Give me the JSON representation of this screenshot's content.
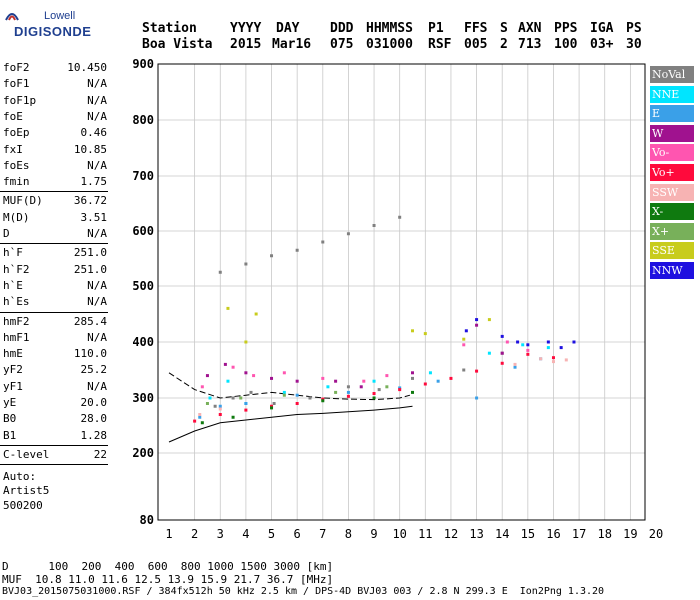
{
  "logo": {
    "top": "Lowell",
    "main": "DIGISONDE"
  },
  "header": {
    "labels": [
      "Station",
      "YYYY",
      "DAY",
      "DDD",
      "HHMMSS",
      "P1",
      "FFS",
      "S",
      "AXN",
      "PPS",
      "IGA",
      "PS"
    ],
    "values": [
      "Boa Vista",
      "2015",
      "Mar16",
      "075",
      "031000",
      "RSF",
      "005",
      "2",
      "713",
      "100",
      "03+",
      "30"
    ]
  },
  "params": {
    "group1": [
      {
        "name": "foF2",
        "value": "10.450"
      },
      {
        "name": "foF1",
        "value": "N/A"
      },
      {
        "name": "foF1p",
        "value": "N/A"
      },
      {
        "name": "foE",
        "value": "N/A"
      },
      {
        "name": "foEp",
        "value": "0.46"
      },
      {
        "name": "fxI",
        "value": "10.85"
      },
      {
        "name": "foEs",
        "value": "N/A"
      },
      {
        "name": "fmin",
        "value": "1.75"
      }
    ],
    "group2": [
      {
        "name": "MUF(D)",
        "value": "36.72"
      },
      {
        "name": "M(D)",
        "value": "3.51"
      },
      {
        "name": "D",
        "value": "N/A"
      }
    ],
    "group3": [
      {
        "name": "h`F",
        "value": "251.0"
      },
      {
        "name": "h`F2",
        "value": "251.0"
      },
      {
        "name": "h`E",
        "value": "N/A"
      },
      {
        "name": "h`Es",
        "value": "N/A"
      }
    ],
    "group4": [
      {
        "name": "hmF2",
        "value": "285.4"
      },
      {
        "name": "hmF1",
        "value": "N/A"
      },
      {
        "name": "hmE",
        "value": "110.0"
      },
      {
        "name": "yF2",
        "value": "25.2"
      },
      {
        "name": "yF1",
        "value": "N/A"
      },
      {
        "name": "yE",
        "value": "20.0"
      },
      {
        "name": "B0",
        "value": "28.0"
      },
      {
        "name": "B1",
        "value": "1.28"
      }
    ],
    "clevel": {
      "name": "C-level",
      "value": "22"
    },
    "auto": [
      "Auto:",
      "Artist5",
      "500200"
    ]
  },
  "legend": [
    {
      "label": "NoVal",
      "color": "#808080"
    },
    {
      "label": "NNE",
      "color": "#00e5ff"
    },
    {
      "label": "E",
      "color": "#3aa0e8"
    },
    {
      "label": "W",
      "color": "#a0128f"
    },
    {
      "label": "Vo-",
      "color": "#ff55b0"
    },
    {
      "label": "Vo+",
      "color": "#ff0a3c"
    },
    {
      "label": "SSW",
      "color": "#f7b3b3"
    },
    {
      "label": "X-",
      "color": "#0f7a0f"
    },
    {
      "label": "X+",
      "color": "#78b05a"
    },
    {
      "label": "SSE",
      "color": "#c8cc1c"
    },
    {
      "label": "NNW",
      "color": "#1e10e0"
    }
  ],
  "bottom": {
    "d_line": "D      100  200  400  600  800 1000 1500 3000 [km]",
    "muf_line": "MUF  10.8 11.0 11.6 12.5 13.9 15.9 21.7 36.7 [MHz]",
    "file_line": "BVJ03_2015075031000.RSF / 384fx512h 50 kHz 2.5 km / DPS-4D BVJ03 003 / 2.8 N 299.3 E  Ion2Png 1.3.20"
  },
  "chart_data": {
    "type": "scatter",
    "x_ticks": [
      "1",
      "2",
      "3",
      "4",
      "5",
      "6",
      "7",
      "8",
      "9",
      "10",
      "11",
      "12",
      "13",
      "14",
      "15",
      "16",
      "17",
      "18",
      "19",
      "20"
    ],
    "y_ticks": [
      "80",
      "200",
      "300",
      "400",
      "500",
      "600",
      "700",
      "800",
      "900"
    ],
    "xlim": [
      1,
      20
    ],
    "ylim": [
      80,
      900
    ],
    "x_unit": "MHz",
    "y_unit": "km",
    "grid": true,
    "legend_position": "right",
    "series": [
      {
        "name": "NoVal",
        "points": [
          [
            2.8,
            285
          ],
          [
            3.5,
            300
          ],
          [
            4.2,
            310
          ],
          [
            5.1,
            290
          ],
          [
            6.5,
            300
          ],
          [
            8.0,
            320
          ],
          [
            9.2,
            315
          ],
          [
            10.5,
            335
          ],
          [
            12.5,
            350
          ],
          [
            14.0,
            380
          ]
        ]
      },
      {
        "name": "NNE",
        "points": [
          [
            2.6,
            300
          ],
          [
            3.3,
            330
          ],
          [
            4.0,
            290
          ],
          [
            5.5,
            310
          ],
          [
            7.2,
            320
          ],
          [
            9.0,
            330
          ],
          [
            11.2,
            345
          ],
          [
            13.5,
            380
          ],
          [
            14.8,
            395
          ],
          [
            15.8,
            390
          ]
        ]
      },
      {
        "name": "E",
        "points": [
          [
            2.2,
            265
          ],
          [
            3.0,
            285
          ],
          [
            4.0,
            290
          ],
          [
            6.0,
            305
          ],
          [
            8.0,
            310
          ],
          [
            10.0,
            318
          ],
          [
            11.5,
            330
          ],
          [
            13.0,
            300
          ],
          [
            14.5,
            355
          ],
          [
            15.5,
            370
          ]
        ]
      },
      {
        "name": "W",
        "points": [
          [
            2.5,
            340
          ],
          [
            3.2,
            360
          ],
          [
            4.0,
            345
          ],
          [
            5.0,
            335
          ],
          [
            6.0,
            330
          ],
          [
            7.5,
            330
          ],
          [
            8.5,
            320
          ],
          [
            10.5,
            345
          ],
          [
            13.0,
            430
          ],
          [
            14.0,
            380
          ]
        ]
      },
      {
        "name": "Vo-",
        "points": [
          [
            2.3,
            320
          ],
          [
            3.5,
            355
          ],
          [
            4.3,
            340
          ],
          [
            5.5,
            345
          ],
          [
            7.0,
            335
          ],
          [
            8.6,
            330
          ],
          [
            9.5,
            340
          ],
          [
            12.5,
            395
          ],
          [
            14.2,
            400
          ],
          [
            15.0,
            385
          ]
        ]
      },
      {
        "name": "Vo+",
        "points": [
          [
            2.0,
            258
          ],
          [
            3.0,
            270
          ],
          [
            4.0,
            278
          ],
          [
            5.0,
            285
          ],
          [
            6.0,
            290
          ],
          [
            7.0,
            298
          ],
          [
            8.0,
            303
          ],
          [
            9.0,
            308
          ],
          [
            10.0,
            315
          ],
          [
            11.0,
            325
          ],
          [
            12.0,
            335
          ],
          [
            13.0,
            348
          ],
          [
            14.0,
            362
          ],
          [
            15.0,
            378
          ],
          [
            16.0,
            372
          ]
        ]
      },
      {
        "name": "SSW",
        "points": [
          [
            15.5,
            370
          ],
          [
            16.0,
            365
          ],
          [
            16.5,
            368
          ],
          [
            14.5,
            360
          ],
          [
            2.2,
            270
          ],
          [
            3.0,
            280
          ]
        ]
      },
      {
        "name": "X-",
        "points": [
          [
            2.3,
            255
          ],
          [
            3.5,
            265
          ],
          [
            5.0,
            282
          ],
          [
            7.0,
            295
          ],
          [
            9.0,
            300
          ],
          [
            10.5,
            310
          ]
        ]
      },
      {
        "name": "X+",
        "points": [
          [
            2.5,
            290
          ],
          [
            3.8,
            300
          ],
          [
            5.5,
            305
          ],
          [
            7.5,
            310
          ],
          [
            9.5,
            320
          ]
        ]
      },
      {
        "name": "SSE",
        "points": [
          [
            3.3,
            460
          ],
          [
            4.0,
            400
          ],
          [
            4.4,
            450
          ],
          [
            10.5,
            420
          ],
          [
            11.0,
            415
          ],
          [
            12.5,
            405
          ],
          [
            13.5,
            440
          ]
        ]
      },
      {
        "name": "NNW",
        "points": [
          [
            14.0,
            410
          ],
          [
            14.6,
            400
          ],
          [
            15.0,
            395
          ],
          [
            15.8,
            400
          ],
          [
            16.3,
            390
          ],
          [
            16.8,
            400
          ],
          [
            13.0,
            440
          ],
          [
            12.6,
            420
          ]
        ]
      },
      {
        "name": "NoVal-upper",
        "points": [
          [
            3.0,
            525
          ],
          [
            4.0,
            540
          ],
          [
            5.0,
            555
          ],
          [
            6.0,
            565
          ],
          [
            7.0,
            580
          ],
          [
            8.0,
            595
          ],
          [
            9.0,
            610
          ],
          [
            10.0,
            625
          ]
        ]
      }
    ],
    "traces": [
      {
        "name": "dashed",
        "points": [
          [
            1.0,
            345
          ],
          [
            2.0,
            315
          ],
          [
            3.0,
            300
          ],
          [
            4.0,
            305
          ],
          [
            5.0,
            310
          ],
          [
            6.0,
            305
          ],
          [
            7.0,
            300
          ],
          [
            8.0,
            298
          ],
          [
            9.0,
            297
          ],
          [
            10.0,
            300
          ],
          [
            10.4,
            305
          ]
        ]
      },
      {
        "name": "solid",
        "points": [
          [
            1.0,
            220
          ],
          [
            2.0,
            240
          ],
          [
            3.0,
            255
          ],
          [
            4.0,
            260
          ],
          [
            5.0,
            265
          ],
          [
            6.0,
            270
          ],
          [
            7.0,
            272
          ],
          [
            8.0,
            275
          ],
          [
            9.0,
            278
          ],
          [
            10.0,
            282
          ],
          [
            10.5,
            285
          ]
        ]
      }
    ]
  }
}
